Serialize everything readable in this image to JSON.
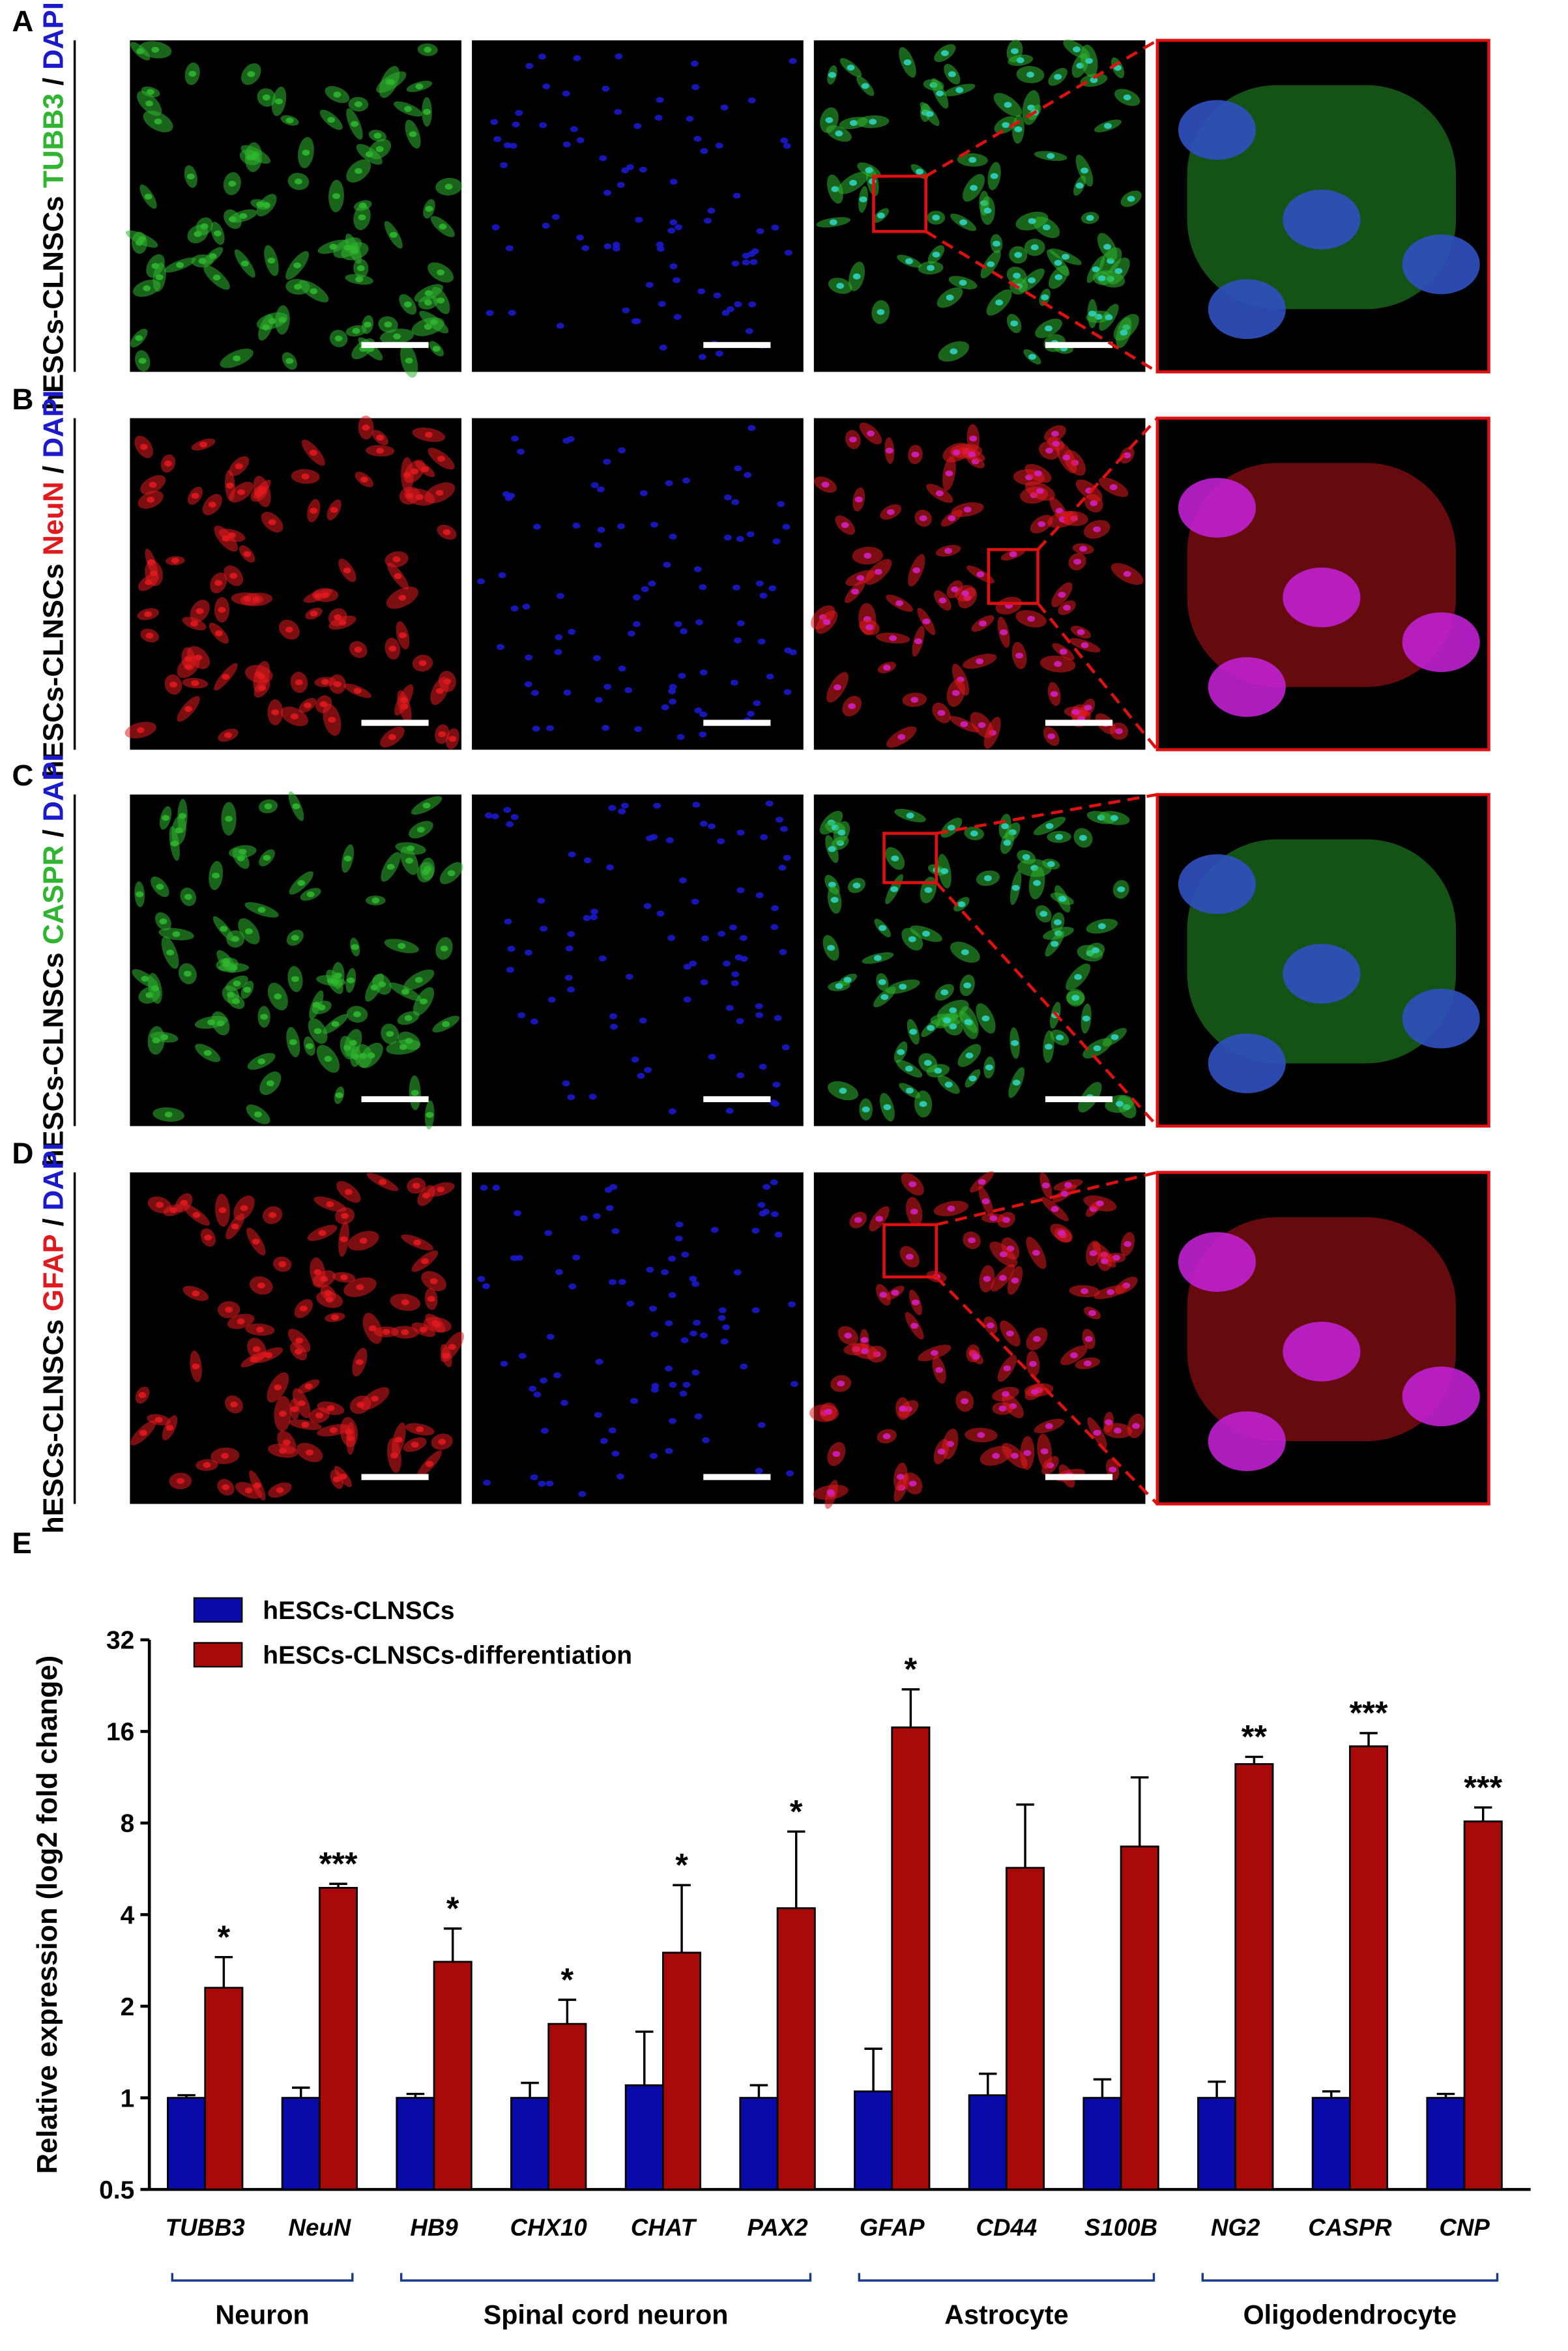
{
  "panels": [
    {
      "letter": "A",
      "cell": "hESCs-CLNSCs",
      "marker": "TUBB3",
      "marker_color": "#2fb52f",
      "separator": "/",
      "counterstain": "DAPI"
    },
    {
      "letter": "B",
      "cell": "hESCs-CLNSCs",
      "marker": "NeuN",
      "marker_color": "#e0191e",
      "separator": "/",
      "counterstain": "DAPI"
    },
    {
      "letter": "C",
      "cell": "hESCs-CLNSCs",
      "marker": "CASPR",
      "marker_color": "#2fb52f",
      "separator": "/",
      "counterstain": "DAPI"
    },
    {
      "letter": "D",
      "cell": "hESCs-CLNSCs",
      "marker": "GFAP",
      "marker_color": "#e0191e",
      "separator": "/",
      "counterstain": "DAPI"
    }
  ],
  "counterstain_color": "#1a1acc",
  "chart_letter": "E",
  "chart_data": {
    "type": "bar",
    "y_label": "Relative expression (log2 fold change)",
    "y_scale": "log",
    "ylim": [
      0.5,
      32
    ],
    "yticks": [
      0.5,
      1,
      2,
      4,
      8,
      16,
      32
    ],
    "categories": [
      "TUBB3",
      "NeuN",
      "HB9",
      "CHX10",
      "CHAT",
      "PAX2",
      "GFAP",
      "CD44",
      "S100B",
      "NG2",
      "CASPR",
      "CNP"
    ],
    "series": [
      {
        "name": "hESCs-CLNSCs",
        "color": "#0a0aa8",
        "values": [
          1.0,
          1.0,
          1.0,
          1.0,
          1.1,
          1.0,
          1.05,
          1.02,
          1.0,
          1.0,
          1.0,
          1.0
        ],
        "errors": [
          0.02,
          0.08,
          0.03,
          0.12,
          0.55,
          0.1,
          0.4,
          0.18,
          0.15,
          0.13,
          0.05,
          0.03
        ]
      },
      {
        "name": "hESCs-CLNSCs-differentiation",
        "color": "#a80a0a",
        "values": [
          2.3,
          4.9,
          2.8,
          1.75,
          3.0,
          4.2,
          16.5,
          5.7,
          6.7,
          12.5,
          14.3,
          8.1
        ],
        "errors": [
          0.6,
          0.15,
          0.8,
          0.35,
          2.0,
          3.3,
          5.5,
          3.5,
          4.6,
          0.7,
          1.5,
          0.9
        ],
        "significance": [
          "*",
          "***",
          "*",
          "*",
          "*",
          "*",
          "*",
          null,
          null,
          "**",
          "***",
          "***"
        ]
      }
    ],
    "groups": [
      {
        "label": "Neuron",
        "start": 0,
        "end": 1
      },
      {
        "label": "Spinal cord neuron",
        "start": 2,
        "end": 5
      },
      {
        "label": "Astrocyte",
        "start": 6,
        "end": 8
      },
      {
        "label": "Oligodendrocyte",
        "start": 9,
        "end": 11
      }
    ]
  }
}
